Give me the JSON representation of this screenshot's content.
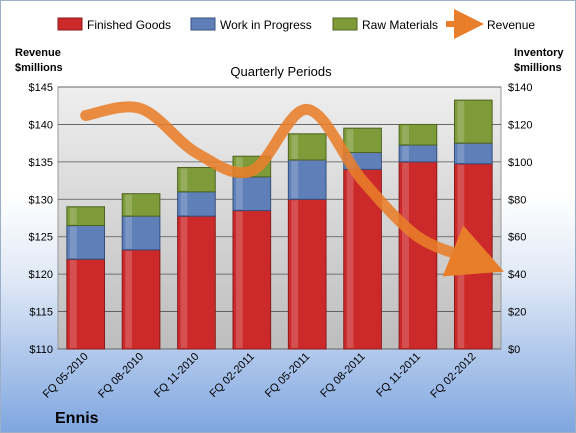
{
  "chart_data": {
    "type": "bar",
    "stacked": true,
    "title": "Quarterly Periods",
    "company": "Ennis",
    "categories": [
      "FQ 05-2010",
      "FQ 08-2010",
      "FQ 11-2010",
      "FQ 02-2011",
      "FQ 05-2011",
      "FQ 08-2011",
      "FQ 11-2011",
      "FQ 02-2012"
    ],
    "left_axis": {
      "title_line1": "Revenue",
      "title_line2": "$millions",
      "ticks": [
        "$110",
        "$115",
        "$120",
        "$125",
        "$130",
        "$135",
        "$140",
        "$145"
      ],
      "range": [
        110,
        145
      ]
    },
    "right_axis": {
      "title_line1": "Inventory",
      "title_line2": "$millions",
      "ticks": [
        "$0",
        "$20",
        "$40",
        "$60",
        "$80",
        "$100",
        "$120",
        "$140"
      ],
      "range": [
        0,
        140
      ]
    },
    "series": [
      {
        "name": "Finished Goods",
        "axis": "right",
        "color": "#cc2a2a",
        "values": [
          48,
          53,
          71,
          74,
          80,
          96,
          100,
          99
        ]
      },
      {
        "name": "Work in Progress",
        "axis": "right",
        "color": "#5e7fb8",
        "values": [
          18,
          18,
          13,
          18,
          21,
          9,
          9,
          11
        ]
      },
      {
        "name": "Raw Materials",
        "axis": "right",
        "color": "#7e9b3a",
        "values": [
          10,
          12,
          13,
          11,
          14,
          13,
          11,
          23
        ]
      }
    ],
    "line_series": {
      "name": "Revenue",
      "axis": "left",
      "color": "#e87e2a",
      "values": [
        141.2,
        142.1,
        136.2,
        133.8,
        142.0,
        132.5,
        125.0,
        122.0
      ]
    },
    "grid": true,
    "legend_position": "top"
  }
}
